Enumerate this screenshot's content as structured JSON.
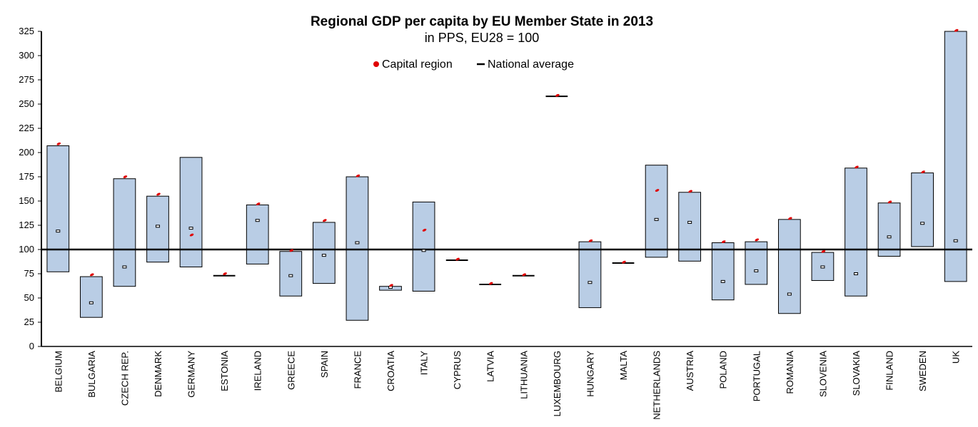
{
  "chart_data": {
    "type": "bar",
    "title": "Regional GDP per capita by EU Member State in 2013",
    "subtitle": "in PPS, EU28 = 100",
    "legend": {
      "capital": "Capital region",
      "national": "National average",
      "placement": "top-center"
    },
    "ylim": [
      0,
      325
    ],
    "yticks": [
      0,
      25,
      50,
      75,
      100,
      125,
      150,
      175,
      200,
      225,
      250,
      275,
      300,
      325
    ],
    "reference_line": 100,
    "colors": {
      "range": "#b9cde5",
      "capital": "#e00000",
      "national": "#000000",
      "axis": "#000000"
    },
    "categories": [
      "BELGIUM",
      "BULGARIA",
      "CZECH REP.",
      "DENMARK",
      "GERMANY",
      "ESTONIA",
      "IRELAND",
      "GREECE",
      "SPAIN",
      "FRANCE",
      "CROATIA",
      "ITALY",
      "CYPRUS",
      "LATVIA",
      "LITHUANIA",
      "LUXEMBOURG",
      "HUNGARY",
      "MALTA",
      "NETHERLANDS",
      "AUSTRIA",
      "POLAND",
      "PORTUGAL",
      "ROMANIA",
      "SLOVENIA",
      "SLOVAKIA",
      "FINLAND",
      "SWEDEN",
      "UK"
    ],
    "series": [
      {
        "name": "Regional range min",
        "values": [
          77,
          30,
          62,
          87,
          82,
          73,
          85,
          52,
          65,
          27,
          58,
          57,
          89,
          64,
          73,
          258,
          40,
          86,
          92,
          88,
          48,
          64,
          34,
          68,
          52,
          93,
          103,
          67
        ]
      },
      {
        "name": "Regional range max",
        "values": [
          207,
          72,
          173,
          155,
          195,
          73,
          146,
          98,
          128,
          175,
          62,
          149,
          89,
          64,
          73,
          258,
          108,
          86,
          187,
          159,
          107,
          108,
          131,
          97,
          184,
          148,
          179,
          325
        ]
      },
      {
        "name": "Capital region",
        "values": [
          209,
          74,
          175,
          157,
          115,
          75,
          147,
          99,
          130,
          176,
          63,
          120,
          90,
          65,
          74,
          259,
          109,
          87,
          161,
          160,
          108,
          110,
          132,
          98,
          185,
          149,
          180,
          326
        ]
      },
      {
        "name": "National average",
        "values": [
          119,
          45,
          82,
          124,
          122,
          73,
          130,
          73,
          94,
          107,
          61,
          99,
          89,
          64,
          73,
          258,
          66,
          86,
          131,
          128,
          67,
          78,
          54,
          82,
          75,
          113,
          127,
          109
        ]
      }
    ]
  }
}
